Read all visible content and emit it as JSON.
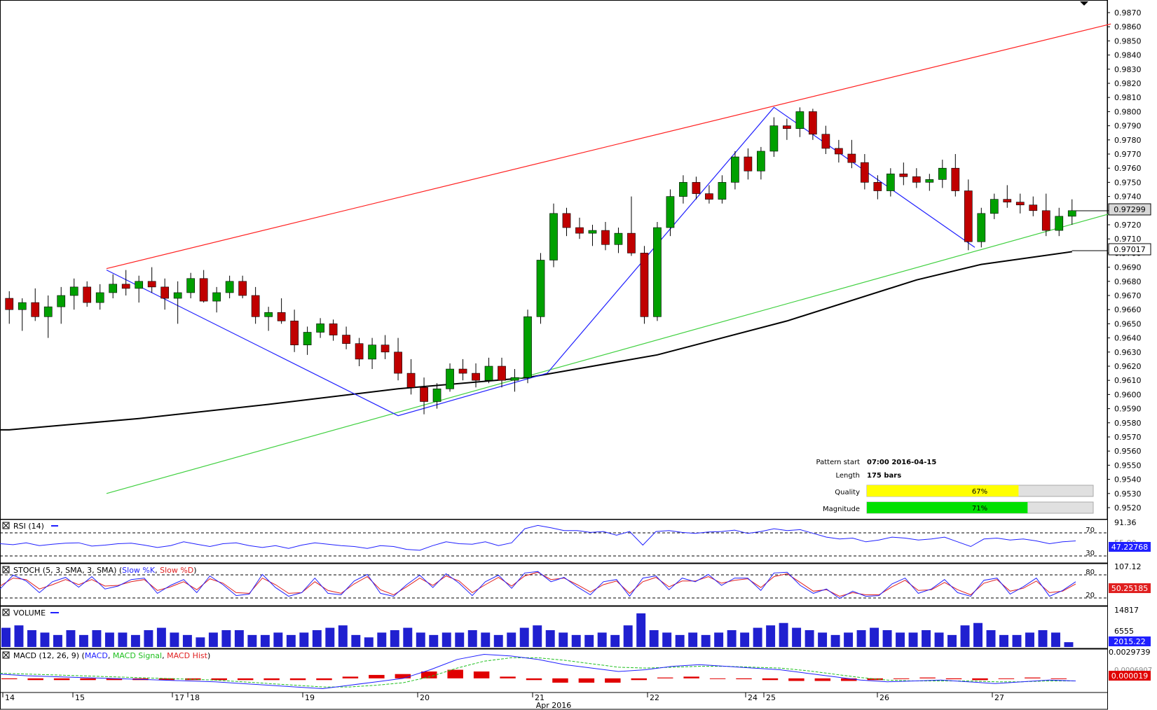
{
  "chart_data": {
    "type": "candlestick",
    "instrument_note": "",
    "price_axis": {
      "min": 0.952,
      "max": 0.987,
      "step": 0.001,
      "tick_labels": [
        "0.9870",
        "0.9860",
        "0.9850",
        "0.9840",
        "0.9830",
        "0.9820",
        "0.9810",
        "0.9800",
        "0.9790",
        "0.9780",
        "0.9770",
        "0.9760",
        "0.9750",
        "0.9740",
        "0.9730",
        "0.9720",
        "0.9710",
        "0.9700",
        "0.9690",
        "0.9680",
        "0.9670",
        "0.9660",
        "0.9650",
        "0.9640",
        "0.9630",
        "0.9620",
        "0.9610",
        "0.9600",
        "0.9590",
        "0.9580",
        "0.9570",
        "0.9560",
        "0.9550",
        "0.9540",
        "0.9530",
        "0.9520"
      ],
      "current_price_label": "0.97299",
      "current_price": 0.97299,
      "ma_label": "0.97017",
      "ma_value": 0.97017
    },
    "time_axis": {
      "labels": [
        "14",
        "15",
        "17",
        "18",
        "19",
        "20",
        "21",
        "22",
        "24",
        "25",
        "26",
        "27"
      ],
      "month_label": "Apr 2016"
    },
    "ohlc": [
      [
        0.9668,
        0.9673,
        0.965,
        0.966
      ],
      [
        0.966,
        0.9668,
        0.9645,
        0.9665
      ],
      [
        0.9665,
        0.9675,
        0.9652,
        0.9655
      ],
      [
        0.9655,
        0.967,
        0.964,
        0.9662
      ],
      [
        0.9662,
        0.9676,
        0.965,
        0.967
      ],
      [
        0.967,
        0.9682,
        0.966,
        0.9676
      ],
      [
        0.9676,
        0.968,
        0.9662,
        0.9665
      ],
      [
        0.9665,
        0.9678,
        0.966,
        0.9672
      ],
      [
        0.9672,
        0.9685,
        0.9668,
        0.9678
      ],
      [
        0.9678,
        0.9688,
        0.967,
        0.9675
      ],
      [
        0.9675,
        0.9684,
        0.9665,
        0.968
      ],
      [
        0.968,
        0.969,
        0.9672,
        0.9676
      ],
      [
        0.9676,
        0.9682,
        0.966,
        0.9668
      ],
      [
        0.9668,
        0.968,
        0.965,
        0.9672
      ],
      [
        0.9672,
        0.9686,
        0.9668,
        0.9682
      ],
      [
        0.9682,
        0.9688,
        0.9665,
        0.9666
      ],
      [
        0.9666,
        0.9676,
        0.9658,
        0.9672
      ],
      [
        0.9672,
        0.9684,
        0.9668,
        0.968
      ],
      [
        0.968,
        0.9684,
        0.9668,
        0.967
      ],
      [
        0.967,
        0.9676,
        0.965,
        0.9655
      ],
      [
        0.9655,
        0.9662,
        0.9645,
        0.9658
      ],
      [
        0.9658,
        0.9668,
        0.965,
        0.9652
      ],
      [
        0.9652,
        0.966,
        0.963,
        0.9635
      ],
      [
        0.9635,
        0.9648,
        0.9628,
        0.9644
      ],
      [
        0.9644,
        0.9654,
        0.964,
        0.965
      ],
      [
        0.965,
        0.9653,
        0.9638,
        0.9642
      ],
      [
        0.9642,
        0.9648,
        0.9632,
        0.9636
      ],
      [
        0.9636,
        0.964,
        0.962,
        0.9625
      ],
      [
        0.9625,
        0.964,
        0.9618,
        0.9635
      ],
      [
        0.9635,
        0.9642,
        0.9625,
        0.963
      ],
      [
        0.963,
        0.964,
        0.961,
        0.9615
      ],
      [
        0.9615,
        0.9625,
        0.96,
        0.9605
      ],
      [
        0.9605,
        0.9612,
        0.9586,
        0.9595
      ],
      [
        0.9595,
        0.9608,
        0.959,
        0.9604
      ],
      [
        0.9604,
        0.9622,
        0.9602,
        0.9618
      ],
      [
        0.9618,
        0.9625,
        0.961,
        0.9615
      ],
      [
        0.9615,
        0.9622,
        0.9605,
        0.961
      ],
      [
        0.961,
        0.9626,
        0.9608,
        0.962
      ],
      [
        0.962,
        0.9626,
        0.9605,
        0.961
      ],
      [
        0.961,
        0.9618,
        0.9602,
        0.9612
      ],
      [
        0.9612,
        0.966,
        0.9608,
        0.9655
      ],
      [
        0.9655,
        0.97,
        0.965,
        0.9695
      ],
      [
        0.9695,
        0.9735,
        0.969,
        0.9728
      ],
      [
        0.9728,
        0.9732,
        0.9712,
        0.9718
      ],
      [
        0.9718,
        0.9725,
        0.971,
        0.9714
      ],
      [
        0.9714,
        0.972,
        0.9705,
        0.9716
      ],
      [
        0.9716,
        0.9722,
        0.9702,
        0.9706
      ],
      [
        0.9706,
        0.9718,
        0.97,
        0.9714
      ],
      [
        0.9714,
        0.974,
        0.9698,
        0.97
      ],
      [
        0.97,
        0.9705,
        0.965,
        0.9655
      ],
      [
        0.9655,
        0.9722,
        0.9652,
        0.9718
      ],
      [
        0.9718,
        0.9745,
        0.9712,
        0.974
      ],
      [
        0.974,
        0.9755,
        0.9735,
        0.975
      ],
      [
        0.975,
        0.9754,
        0.9738,
        0.9742
      ],
      [
        0.9742,
        0.9748,
        0.9735,
        0.9738
      ],
      [
        0.9738,
        0.9755,
        0.9735,
        0.975
      ],
      [
        0.975,
        0.9772,
        0.9745,
        0.9768
      ],
      [
        0.9768,
        0.9774,
        0.9752,
        0.9758
      ],
      [
        0.9758,
        0.9775,
        0.9752,
        0.9772
      ],
      [
        0.9772,
        0.9796,
        0.9768,
        0.979
      ],
      [
        0.979,
        0.9795,
        0.978,
        0.9788
      ],
      [
        0.9788,
        0.9803,
        0.9782,
        0.98
      ],
      [
        0.98,
        0.9802,
        0.978,
        0.9784
      ],
      [
        0.9784,
        0.979,
        0.977,
        0.9774
      ],
      [
        0.9774,
        0.978,
        0.9764,
        0.977
      ],
      [
        0.977,
        0.978,
        0.976,
        0.9764
      ],
      [
        0.9764,
        0.977,
        0.9745,
        0.975
      ],
      [
        0.975,
        0.9755,
        0.9738,
        0.9744
      ],
      [
        0.9744,
        0.976,
        0.974,
        0.9756
      ],
      [
        0.9756,
        0.9764,
        0.9748,
        0.9754
      ],
      [
        0.9754,
        0.976,
        0.9746,
        0.975
      ],
      [
        0.975,
        0.9756,
        0.9744,
        0.9752
      ],
      [
        0.9752,
        0.9766,
        0.9746,
        0.976
      ],
      [
        0.976,
        0.977,
        0.974,
        0.9744
      ],
      [
        0.9744,
        0.9752,
        0.9702,
        0.9708
      ],
      [
        0.9708,
        0.9732,
        0.9704,
        0.9728
      ],
      [
        0.9728,
        0.9742,
        0.9724,
        0.9738
      ],
      [
        0.9738,
        0.9748,
        0.9732,
        0.9736
      ],
      [
        0.9736,
        0.9742,
        0.9728,
        0.9734
      ],
      [
        0.9734,
        0.974,
        0.9726,
        0.973
      ],
      [
        0.973,
        0.9742,
        0.9712,
        0.9716
      ],
      [
        0.9716,
        0.9732,
        0.9712,
        0.9726
      ],
      [
        0.9726,
        0.9738,
        0.972,
        0.973
      ]
    ],
    "moving_average_200": [
      [
        0,
        0.9575
      ],
      [
        10,
        0.9583
      ],
      [
        20,
        0.9593
      ],
      [
        30,
        0.9604
      ],
      [
        40,
        0.9612
      ],
      [
        50,
        0.9628
      ],
      [
        60,
        0.9652
      ],
      [
        70,
        0.9681
      ],
      [
        75,
        0.9692
      ],
      [
        82,
        0.9701
      ]
    ],
    "pattern": {
      "name": "",
      "upper_line": [
        [
          7.5,
          0.9689
        ],
        [
          85,
          0.9862
        ]
      ],
      "lower_line": [
        [
          7.5,
          0.953
        ],
        [
          85,
          0.9728
        ]
      ],
      "zigzag": [
        [
          7.5,
          0.9688
        ],
        [
          30,
          0.9585
        ],
        [
          41.5,
          0.9615
        ],
        [
          59,
          0.9803
        ],
        [
          74.5,
          0.9704
        ]
      ]
    },
    "pattern_info": {
      "start_label": "Pattern start",
      "start_value": "07:00 2016-04-15",
      "length_label": "Length",
      "length_value": "175 bars",
      "quality_label": "Quality",
      "quality_value": "67%",
      "quality_fraction": 0.67,
      "magnitude_label": "Magnitude",
      "magnitude_value": "71%",
      "magnitude_fraction": 0.71
    },
    "indicators": {
      "rsi": {
        "label": "RSI (14)",
        "levels": [
          "70",
          "30"
        ],
        "axis_top": "91.36",
        "axis_mid": "55.00",
        "value": "47.22768",
        "series": [
          48,
          46,
          50,
          44,
          47,
          49,
          50,
          43,
          45,
          48,
          49,
          45,
          40,
          44,
          52,
          47,
          42,
          48,
          50,
          44,
          40,
          44,
          38,
          45,
          50,
          47,
          44,
          42,
          38,
          44,
          42,
          36,
          34,
          44,
          52,
          48,
          47,
          52,
          44,
          50,
          80,
          87,
          82,
          76,
          76,
          72,
          74,
          66,
          74,
          45,
          74,
          76,
          72,
          70,
          73,
          74,
          77,
          70,
          74,
          80,
          76,
          78,
          70,
          62,
          58,
          60,
          52,
          56,
          62,
          60,
          56,
          58,
          62,
          52,
          42,
          58,
          60,
          56,
          58,
          54,
          48,
          52,
          54
        ]
      },
      "stoch": {
        "label": "STOCH (5, 3, SMA, 3, SMA)",
        "k_name": "Slow %K",
        "d_name": "Slow %D",
        "levels": [
          "80",
          "20"
        ],
        "axis_top": "107.12",
        "value": "50.25185",
        "k": [
          40,
          78,
          62,
          30,
          60,
          72,
          45,
          74,
          40,
          48,
          66,
          70,
          28,
          50,
          66,
          30,
          76,
          52,
          22,
          26,
          80,
          44,
          20,
          30,
          70,
          28,
          24,
          62,
          80,
          28,
          20,
          52,
          78,
          44,
          82,
          56,
          22,
          60,
          78,
          42,
          84,
          88,
          60,
          72,
          46,
          24,
          60,
          66,
          20,
          70,
          76,
          38,
          70,
          60,
          80,
          50,
          70,
          70,
          36,
          84,
          86,
          50,
          28,
          40,
          14,
          34,
          20,
          22,
          54,
          70,
          28,
          40,
          66,
          30,
          20,
          64,
          70,
          26,
          46,
          70,
          20,
          36,
          60
        ],
        "d": [
          48,
          70,
          66,
          40,
          52,
          66,
          52,
          66,
          48,
          50,
          60,
          66,
          36,
          46,
          60,
          38,
          68,
          56,
          30,
          28,
          70,
          52,
          28,
          30,
          60,
          36,
          28,
          54,
          74,
          38,
          24,
          46,
          70,
          50,
          76,
          62,
          30,
          52,
          72,
          48,
          76,
          86,
          66,
          70,
          52,
          32,
          52,
          62,
          28,
          60,
          72,
          46,
          62,
          62,
          74,
          56,
          64,
          68,
          44,
          74,
          82,
          58,
          34,
          38,
          20,
          30,
          24,
          24,
          46,
          64,
          36,
          38,
          58,
          38,
          24,
          56,
          66,
          34,
          42,
          62,
          30,
          34,
          54
        ]
      },
      "volume": {
        "label": "VOLUME",
        "axis_top": "14817",
        "axis_mid": "6555",
        "value": "2015.22",
        "series": [
          8,
          9,
          7,
          6,
          5,
          7,
          5,
          7,
          6,
          6,
          5,
          7,
          8,
          6,
          5,
          4,
          6,
          7,
          7,
          5,
          5,
          6,
          5,
          6,
          7,
          8,
          9,
          5,
          4,
          6,
          7,
          8,
          6,
          5,
          6,
          6,
          7,
          6,
          5,
          6,
          8,
          9,
          7,
          6,
          5,
          5,
          6,
          5,
          9,
          14,
          7,
          6,
          5,
          6,
          5,
          6,
          7,
          6,
          8,
          9,
          10,
          8,
          7,
          6,
          5,
          6,
          7,
          8,
          7,
          6,
          6,
          7,
          6,
          5,
          9,
          10,
          7,
          5,
          5,
          6,
          7,
          6,
          2
        ]
      },
      "macd": {
        "label": "MACD (12, 26, 9)",
        "macd_name": "MACD",
        "signal_name": "MACD Signal",
        "hist_name": "MACD Hist",
        "axis_top": "0.0029739",
        "axis_mid": "0.0006907",
        "value": "0.000019",
        "macd": [
          0.0005,
          0.0003,
          0.0002,
          0.0001,
          0.0,
          -0.0001,
          -0.0002,
          -0.0003,
          -0.0004,
          -0.0006,
          -0.0008,
          -0.001,
          -0.0012,
          -0.0008,
          -0.0004,
          0.0,
          0.001,
          0.0022,
          0.0028,
          0.0026,
          0.0022,
          0.0016,
          0.0012,
          0.0008,
          0.001,
          0.0014,
          0.0016,
          0.0014,
          0.0012,
          0.001,
          0.0006,
          0.0002,
          -0.0002,
          -0.0004,
          -0.0003,
          -0.0002,
          -0.0004,
          -0.0006,
          -0.0004,
          -0.0002,
          -0.0003
        ],
        "signal": [
          0.0006,
          0.0005,
          0.0004,
          0.0003,
          0.0002,
          0.0001,
          0.0,
          -0.0001,
          -0.0002,
          -0.0004,
          -0.0006,
          -0.0008,
          -0.001,
          -0.001,
          -0.0008,
          -0.0005,
          0.0002,
          0.0012,
          0.002,
          0.0024,
          0.0024,
          0.0021,
          0.0017,
          0.0013,
          0.0012,
          0.0013,
          0.0014,
          0.0014,
          0.0013,
          0.0012,
          0.0009,
          0.0005,
          0.0001,
          -0.0002,
          -0.0003,
          -0.0003,
          -0.0003,
          -0.0004,
          -0.0004,
          -0.0003,
          -0.0003
        ],
        "hist": [
          -0.0001,
          -0.0002,
          -0.0002,
          -0.0002,
          -0.0002,
          -0.0002,
          -0.0002,
          -0.0002,
          -0.0002,
          -0.0002,
          -0.0002,
          -0.0002,
          -0.0002,
          0.0002,
          0.0004,
          0.0005,
          0.0008,
          0.001,
          0.0008,
          0.0002,
          -0.0002,
          -0.0005,
          -0.0005,
          -0.0005,
          -0.0002,
          0.0001,
          0.0002,
          0.0,
          -0.0001,
          -0.0002,
          -0.0003,
          -0.0003,
          -0.0003,
          -0.0002,
          0.0,
          0.0001,
          -0.0001,
          -0.0002,
          0.0,
          0.0001,
          0.0
        ]
      }
    },
    "colors": {
      "bull": "#00a000",
      "bear": "#c00000",
      "upper_line": "#ff2020",
      "lower_line": "#40d040",
      "zigzag": "#2020ff",
      "ma": "#000000",
      "quality_bar": "#ffff00",
      "magnitude_bar": "#00e000",
      "track": "#e0e0e0"
    }
  }
}
